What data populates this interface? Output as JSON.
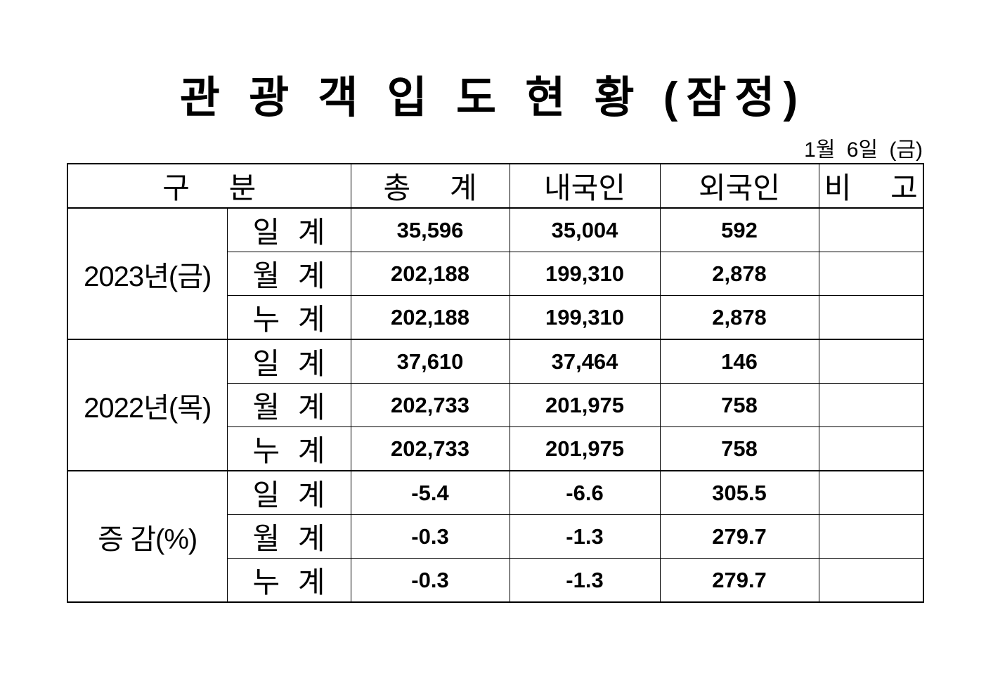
{
  "title": "관 광 객 입 도 현 황 (잠정)",
  "date": "1월 6일 (금)",
  "table": {
    "headers": [
      "구 분",
      "총 계",
      "내국인",
      "외국인",
      "비 고"
    ],
    "groups": [
      {
        "label": "2023년(금)",
        "rows": [
          {
            "label": "일 계",
            "total": "35,596",
            "domestic": "35,004",
            "foreign": "592",
            "note": ""
          },
          {
            "label": "월 계",
            "total": "202,188",
            "domestic": "199,310",
            "foreign": "2,878",
            "note": ""
          },
          {
            "label": "누 계",
            "total": "202,188",
            "domestic": "199,310",
            "foreign": "2,878",
            "note": ""
          }
        ]
      },
      {
        "label": "2022년(목)",
        "rows": [
          {
            "label": "일 계",
            "total": "37,610",
            "domestic": "37,464",
            "foreign": "146",
            "note": ""
          },
          {
            "label": "월 계",
            "total": "202,733",
            "domestic": "201,975",
            "foreign": "758",
            "note": ""
          },
          {
            "label": "누 계",
            "total": "202,733",
            "domestic": "201,975",
            "foreign": "758",
            "note": ""
          }
        ]
      },
      {
        "label": "증 감(%)",
        "rows": [
          {
            "label": "일 계",
            "total": "-5.4",
            "domestic": "-6.6",
            "foreign": "305.5",
            "note": ""
          },
          {
            "label": "월 계",
            "total": "-0.3",
            "domestic": "-1.3",
            "foreign": "279.7",
            "note": ""
          },
          {
            "label": "누 계",
            "total": "-0.3",
            "domestic": "-1.3",
            "foreign": "279.7",
            "note": ""
          }
        ]
      }
    ]
  }
}
